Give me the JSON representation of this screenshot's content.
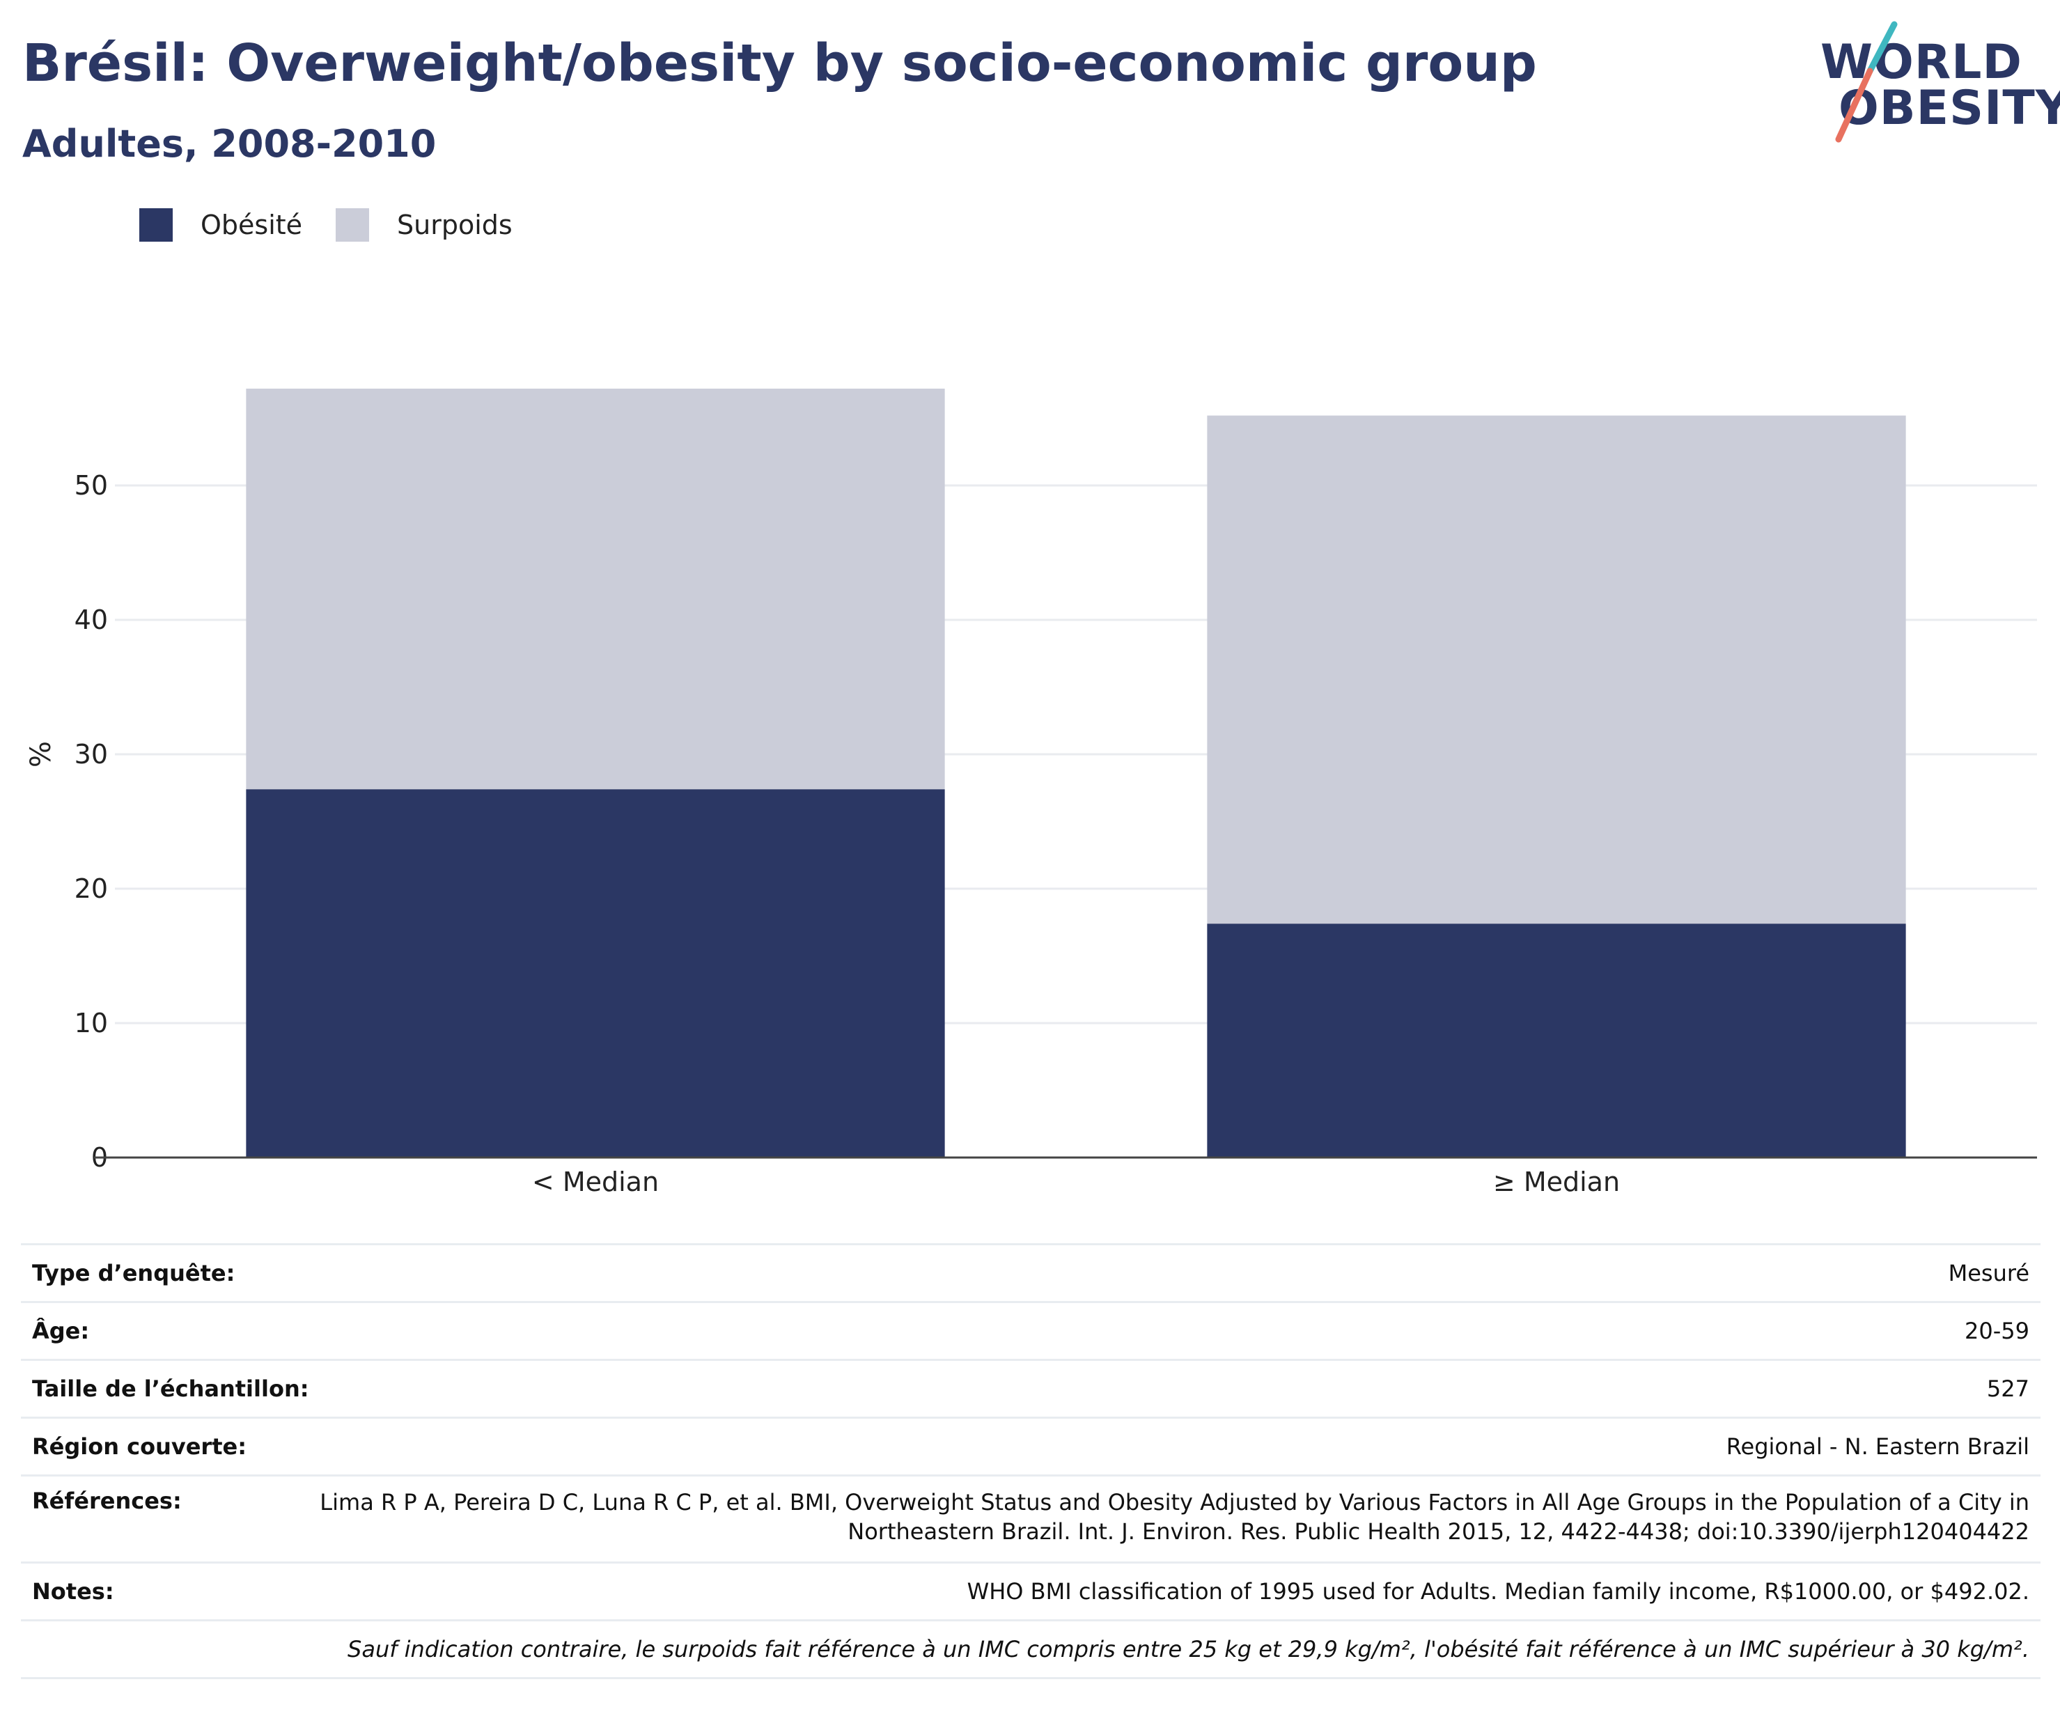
{
  "header": {
    "title": "Brésil: Overweight/obesity by socio-economic group",
    "subtitle": "Adultes, 2008-2010"
  },
  "logo": {
    "line1": "WORLD",
    "line2": "OBESITY"
  },
  "colors": {
    "obesity": "#2b3764",
    "overweight": "#cbcdd9",
    "title": "#2b3764",
    "accent_teal": "#3fb7c0",
    "accent_coral": "#e8715f"
  },
  "chart_data": {
    "type": "bar",
    "stacked": true,
    "categories": [
      "< Median",
      "≥ Median"
    ],
    "series": [
      {
        "name": "Obésité",
        "values": [
          27.4,
          17.4
        ]
      },
      {
        "name": "Surpoids",
        "values": [
          29.8,
          37.8
        ]
      }
    ],
    "ylabel": "%",
    "yticks": [
      0,
      10,
      20,
      30,
      40,
      50
    ],
    "ylim": [
      0,
      60
    ],
    "grid": true,
    "legend": "top-left"
  },
  "info": [
    {
      "key": "Type d’enquête:",
      "value": "Mesuré"
    },
    {
      "key": "Âge:",
      "value": "20-59"
    },
    {
      "key": "Taille de l’échantillon:",
      "value": "527"
    },
    {
      "key": "Région couverte:",
      "value": "Regional - N. Eastern Brazil"
    },
    {
      "key": "Références:",
      "value": "Lima R P A, Pereira D C, Luna R C P, et al. BMI, Overweight Status and Obesity Adjusted by Various Factors in All Age Groups in the Population of a City in Northeastern Brazil. Int. J. Environ. Res. Public Health 2015, 12, 4422-4438; doi:10.3390/ijerph120404422"
    },
    {
      "key": "Notes:",
      "value": "WHO BMI classification of 1995 used for Adults. Median family income, R$1000.00, or $492.02."
    }
  ],
  "footnote": "Sauf indication contraire, le surpoids fait référence à un IMC compris entre 25 kg et 29,9 kg/m², l'obésité fait référence à un IMC supérieur à 30 kg/m²."
}
